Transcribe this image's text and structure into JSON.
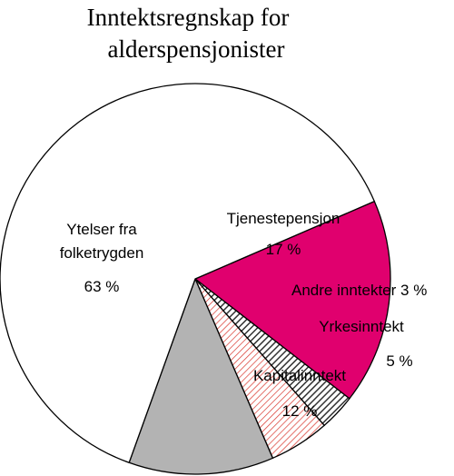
{
  "chart_data": {
    "type": "pie",
    "title_lines": [
      "Inntektsregnskap for",
      "alderspensjonister"
    ],
    "slices": [
      {
        "label_lines": [
          "Tjenestepensjon"
        ],
        "value_text": "17 %",
        "value": 17,
        "color": "#e0006e",
        "pattern": "solid"
      },
      {
        "label_lines": [
          "Andre inntekter 3 %"
        ],
        "value_text": "",
        "value": 3,
        "color": "#555555",
        "pattern": "hatch-dark"
      },
      {
        "label_lines": [
          "Yrkesinntekt"
        ],
        "value_text": "5 %",
        "value": 5,
        "color": "#d9342b",
        "pattern": "hatch-red"
      },
      {
        "label_lines": [
          "Kapitalinntekt"
        ],
        "value_text": "12 %",
        "value": 12,
        "color": "#b3b3b3",
        "pattern": "solid"
      },
      {
        "label_lines": [
          "Ytelser fra",
          "folketrygden"
        ],
        "value_text": "63 %",
        "value": 63,
        "color": "#ffffff",
        "pattern": "solid"
      }
    ],
    "legend": "none",
    "grid": false
  }
}
